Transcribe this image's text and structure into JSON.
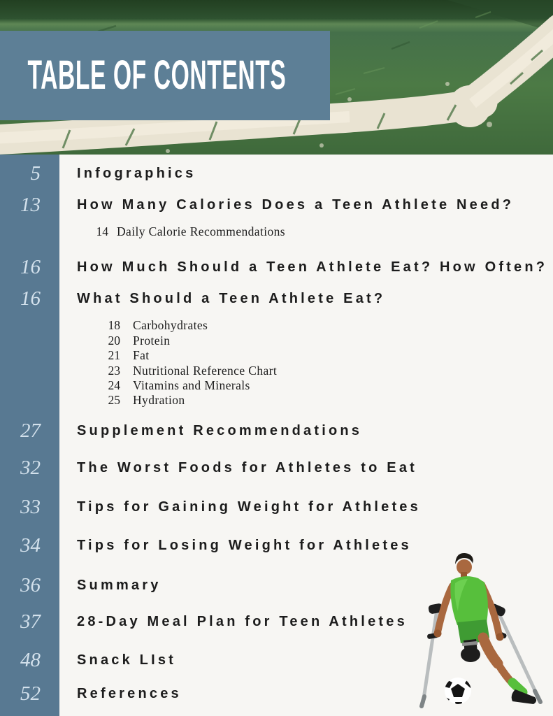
{
  "page": {
    "title_banner": "TABLE OF CONTENTS"
  },
  "colors": {
    "banner_blue": "#5d7f96",
    "sidebar_blue": "#587992",
    "page_background": "#f7f6f3",
    "heading_text": "#1c1c1c",
    "page_number_text": "#d3e1ec",
    "chalk_line": "#e9e3d2",
    "grass_dark": "#2b4d2c",
    "grass_mid": "#4c7847",
    "shirt_green": "#57bf3c"
  },
  "icons": {
    "illustration": "amputee-soccer-player-with-crutches-and-ball",
    "ball": "soccer-ball-icon"
  },
  "toc": {
    "entries": [
      {
        "page": "5",
        "title": "Infographics",
        "sub": []
      },
      {
        "page": "13",
        "title": "How Many Calories Does a Teen Athlete Need?",
        "sub": [
          {
            "page": "14",
            "title": "Daily Calorie Recommendations"
          }
        ]
      },
      {
        "page": "16",
        "title": "How Much Should a Teen Athlete Eat? How Often?",
        "sub": []
      },
      {
        "page": "16",
        "title": "What Should a Teen Athlete Eat?",
        "sub": [
          {
            "page": "18",
            "title": "Carbohydrates"
          },
          {
            "page": "20",
            "title": "Protein"
          },
          {
            "page": "21",
            "title": "Fat"
          },
          {
            "page": "23",
            "title": "Nutritional Reference Chart"
          },
          {
            "page": "24",
            "title": "Vitamins and Minerals"
          },
          {
            "page": "25",
            "title": "Hydration"
          }
        ]
      },
      {
        "page": "27",
        "title": "Supplement Recommendations",
        "sub": []
      },
      {
        "page": "32",
        "title": "The Worst Foods for Athletes to Eat",
        "sub": []
      },
      {
        "page": "33",
        "title": "Tips for Gaining Weight for Athletes",
        "sub": []
      },
      {
        "page": "34",
        "title": "Tips for Losing Weight for Athletes",
        "sub": []
      },
      {
        "page": "36",
        "title": "Summary",
        "sub": []
      },
      {
        "page": "37",
        "title": "28-Day Meal Plan for Teen Athletes",
        "sub": []
      },
      {
        "page": "48",
        "title": "Snack LIst",
        "sub": []
      },
      {
        "page": "52",
        "title": "References",
        "sub": []
      }
    ]
  }
}
